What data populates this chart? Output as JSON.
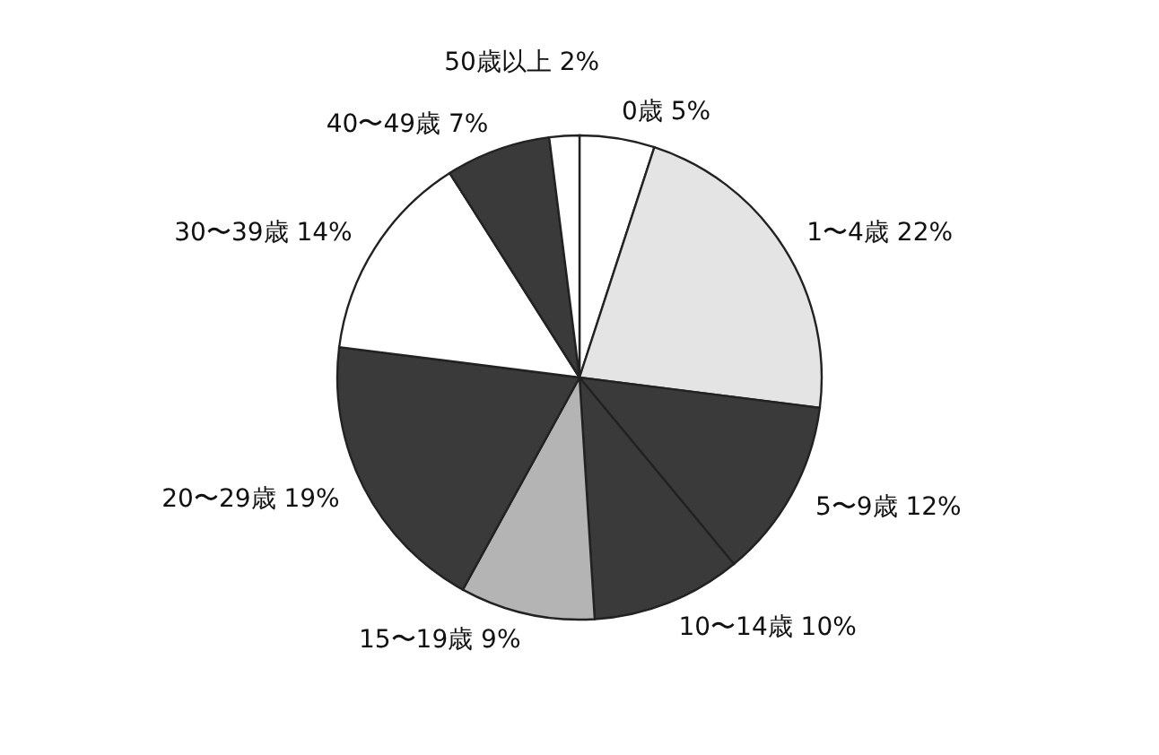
{
  "chart_data": {
    "type": "pie",
    "categories": [
      "0歳",
      "1〜4歳",
      "5〜9歳",
      "10〜14歳",
      "15〜19歳",
      "20〜29歳",
      "30〜39歳",
      "40〜49歳",
      "50歳以上"
    ],
    "values": [
      5,
      22,
      12,
      10,
      9,
      19,
      14,
      7,
      2
    ],
    "value_labels": [
      "5%",
      "22%",
      "12%",
      "10%",
      "9%",
      "19%",
      "14%",
      "7%",
      "2%"
    ],
    "colors": [
      "#ffffff",
      "#e4e4e4",
      "#3a3a3a",
      "#3a3a3a",
      "#b4b4b4",
      "#3a3a3a",
      "#ffffff",
      "#3a3a3a",
      "#ffffff"
    ],
    "legend": false
  }
}
